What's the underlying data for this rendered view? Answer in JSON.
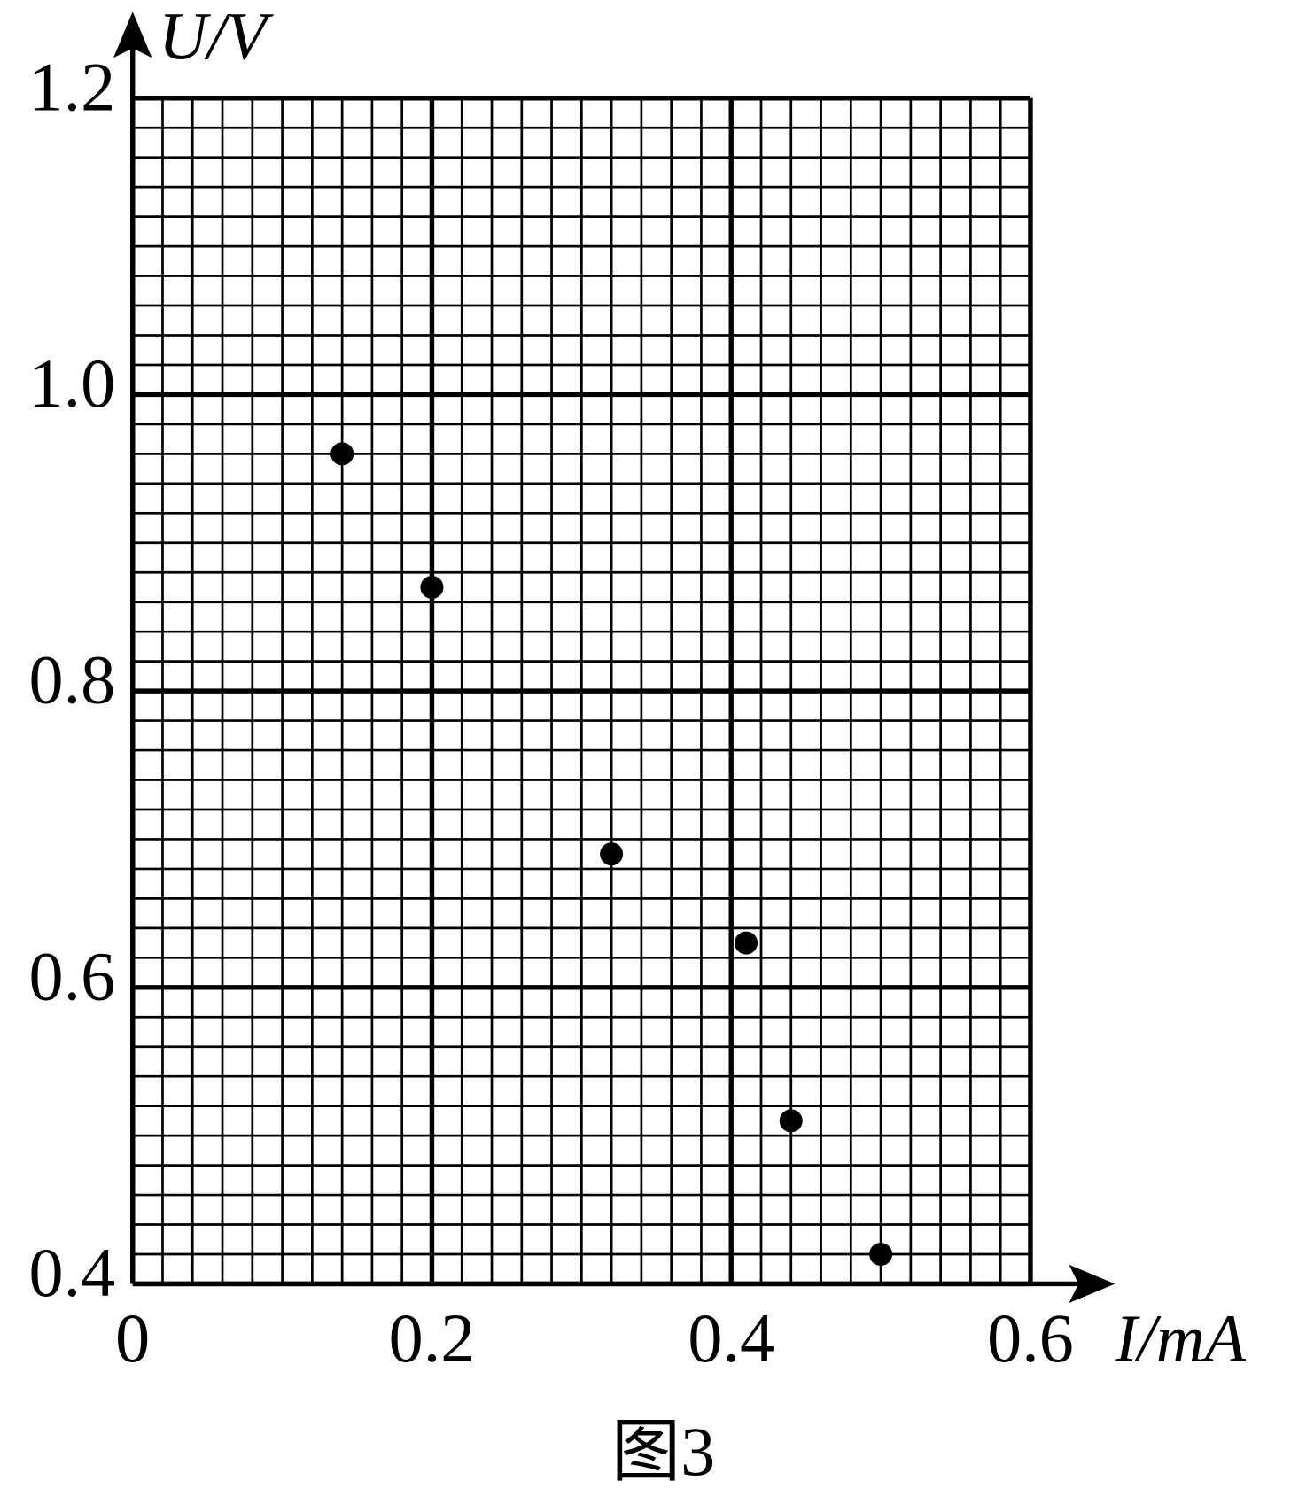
{
  "chart_data": {
    "type": "scatter",
    "x_label": "I/mA",
    "y_label": "U/V",
    "caption": "图3",
    "x": [
      0.14,
      0.2,
      0.32,
      0.41,
      0.44,
      0.5
    ],
    "values": [
      0.96,
      0.87,
      0.69,
      0.63,
      0.51,
      0.42
    ],
    "color": "#000000",
    "xlim": [
      0,
      0.6
    ],
    "xticks": [
      0,
      0.2,
      0.4,
      0.6
    ],
    "ylim": [
      0.4,
      1.2
    ],
    "yticks": [
      0.4,
      0.6,
      0.8,
      {
        "value": 1,
        "label": "1.0"
      },
      1.2
    ],
    "grid": true,
    "minor_divisions": 10
  }
}
